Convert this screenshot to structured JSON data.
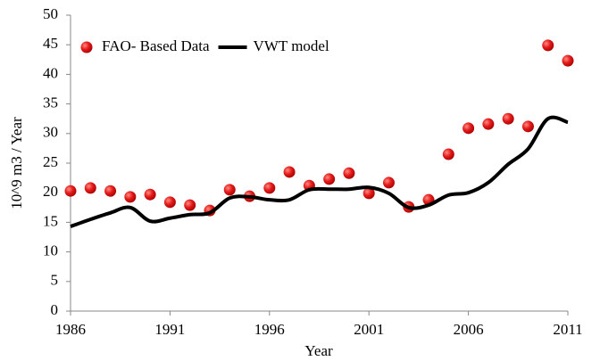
{
  "chart_data": {
    "type": "line",
    "xlabel": "Year",
    "ylabel": "10^9 m3 / Year",
    "x": [
      1986,
      1987,
      1988,
      1989,
      1990,
      1991,
      1992,
      1993,
      1994,
      1995,
      1996,
      1997,
      1998,
      1999,
      2000,
      2001,
      2002,
      2003,
      2004,
      2005,
      2006,
      2007,
      2008,
      2009,
      2010,
      2011
    ],
    "xlim": [
      1986,
      2011
    ],
    "xticks": [
      1986,
      1991,
      1996,
      2001,
      2006,
      2011
    ],
    "ylim": [
      0,
      50
    ],
    "yticks": [
      0,
      5,
      10,
      15,
      20,
      25,
      30,
      35,
      40,
      45,
      50
    ],
    "legend": "upper-left",
    "series": [
      {
        "name": "FAO- Based Data",
        "color": "#e01010",
        "mode": "markers",
        "values": [
          20.3,
          20.8,
          20.3,
          19.3,
          19.7,
          18.4,
          17.9,
          17.0,
          20.5,
          19.4,
          20.8,
          23.5,
          21.2,
          22.3,
          23.3,
          19.9,
          21.7,
          17.6,
          18.8,
          26.5,
          30.9,
          31.6,
          32.5,
          31.2,
          44.9,
          42.3
        ]
      },
      {
        "name": "VWT model",
        "color": "#000000",
        "mode": "line",
        "values": [
          14.3,
          15.5,
          16.6,
          17.5,
          15.2,
          15.7,
          16.3,
          16.6,
          19.1,
          19.3,
          18.8,
          18.8,
          20.5,
          20.6,
          20.6,
          20.9,
          19.9,
          17.5,
          17.9,
          19.6,
          20.0,
          21.7,
          24.8,
          27.4,
          32.5,
          31.9
        ]
      }
    ]
  }
}
